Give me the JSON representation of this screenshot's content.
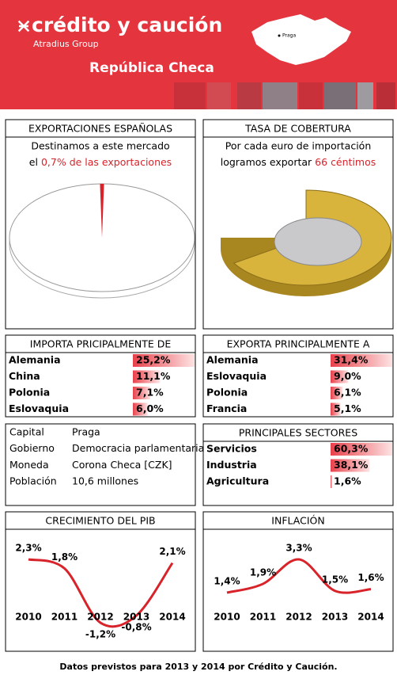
{
  "header": {
    "brand": "crédito y caución",
    "group": "Atradius Group",
    "country": "República Checa",
    "map_label": "Praga"
  },
  "chart_data": [
    {
      "type": "pie",
      "title": "EXPORTACIONES ESPAÑOLAS",
      "text_1": "Destinamos a este mercado",
      "text_2": "el",
      "values": [
        0.7
      ],
      "value_labels": [
        "0,7%"
      ],
      "text_3": "de las exportaciones",
      "color": "#d8232a"
    },
    {
      "type": "coin",
      "title": "TASA DE COBERTURA",
      "text_1": "Por cada euro de importación",
      "text_2": "logramos exportar",
      "values": [
        66
      ],
      "value_labels": [
        "66"
      ],
      "text_3": "céntimos",
      "color": "#d9b43c"
    },
    {
      "type": "hbar",
      "title": "IMPORTA PRICIPALMENTE DE",
      "categories": [
        "Alemania",
        "China",
        "Polonia",
        "Eslovaquia"
      ],
      "values": [
        25.2,
        11.1,
        7.1,
        6.0
      ],
      "value_labels": [
        "25,2%",
        "11,1%",
        "7,1%",
        "6,0%"
      ],
      "color": "#e8414b"
    },
    {
      "type": "hbar",
      "title": "EXPORTA PRINCIPALMENTE A",
      "categories": [
        "Alemania",
        "Eslovaquia",
        "Polonia",
        "Francia"
      ],
      "values": [
        31.4,
        9.0,
        6.1,
        5.1
      ],
      "value_labels": [
        "31,4%",
        "9,0%",
        "6,1%",
        "5,1%"
      ],
      "color": "#e8414b"
    },
    {
      "type": "hbar",
      "title": "PRINCIPALES SECTORES",
      "categories": [
        "Servicios",
        "Industria",
        "Agricultura"
      ],
      "values": [
        60.3,
        38.1,
        1.6
      ],
      "value_labels": [
        "60,3%",
        "38,1%",
        "1,6%"
      ],
      "color": "#e8414b"
    },
    {
      "type": "line",
      "title": "CRECIMIENTO DEL PIB",
      "categories": [
        "2010",
        "2011",
        "2012",
        "2013",
        "2014"
      ],
      "values": [
        2.3,
        1.8,
        -1.2,
        -0.8,
        2.1
      ],
      "value_labels": [
        "2,3%",
        "1,8%",
        "-1,2%",
        "-0,8%",
        "2,1%"
      ],
      "color": "#d8232a"
    },
    {
      "type": "line",
      "title": "INFLACIÓN",
      "categories": [
        "2010",
        "2011",
        "2012",
        "2013",
        "2014"
      ],
      "values": [
        1.4,
        1.9,
        3.3,
        1.5,
        1.6
      ],
      "value_labels": [
        "1,4%",
        "1,9%",
        "3,3%",
        "1,5%",
        "1,6%"
      ],
      "color": "#d8232a"
    }
  ],
  "info": {
    "rows": [
      [
        "Capital",
        "Praga"
      ],
      [
        "Gobierno",
        "Democracia parlamentaria"
      ],
      [
        "Moneda",
        "Corona Checa [CZK]"
      ],
      [
        "Población",
        "10,6 millones"
      ]
    ]
  },
  "footer": "Datos previstos para 2013 y 2014 por Crédito y Caución."
}
